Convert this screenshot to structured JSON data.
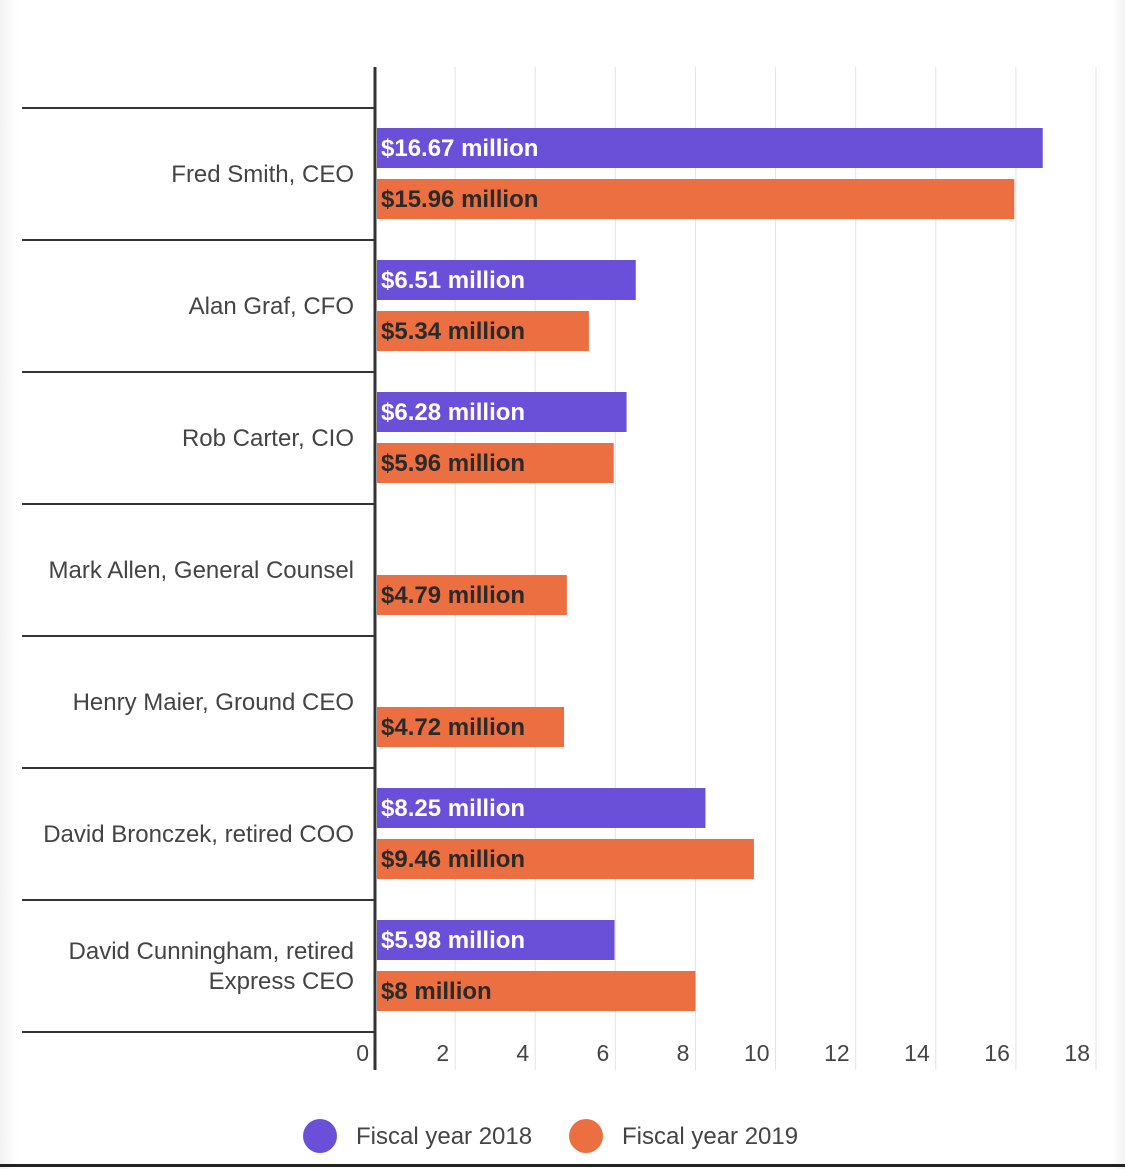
{
  "chart_data": {
    "type": "bar",
    "orientation": "horizontal",
    "categories": [
      [
        "Fred Smith, CEO"
      ],
      [
        "Alan Graf, CFO"
      ],
      [
        "Rob Carter, CIO"
      ],
      [
        "Mark Allen, General Counsel"
      ],
      [
        "Henry Maier, Ground CEO"
      ],
      [
        "David Bronczek, retired COO"
      ],
      [
        "David Cunningham, retired",
        "Express CEO"
      ]
    ],
    "series": [
      {
        "name": "Fiscal year 2018",
        "color": "#6a4fd8",
        "label_color": "#ffffff",
        "values": [
          16.67,
          6.51,
          6.28,
          null,
          null,
          8.25,
          5.98
        ],
        "labels": [
          "$16.67 million",
          "$6.51 million",
          "$6.28 million",
          null,
          null,
          "$8.25 million",
          "$5.98 million"
        ]
      },
      {
        "name": "Fiscal year 2019",
        "color": "#ec6f42",
        "label_color": "#2a2a2a",
        "values": [
          15.96,
          5.34,
          5.96,
          4.79,
          4.72,
          9.46,
          8
        ],
        "labels": [
          "$15.96 million",
          "$5.34 million",
          "$5.96 million",
          "$4.79 million",
          "$4.72 million",
          "$9.46 million",
          "$8 million"
        ]
      }
    ],
    "x_ticks": [
      0,
      2,
      4,
      6,
      8,
      10,
      12,
      14,
      16,
      18
    ],
    "xlim": [
      0,
      18
    ],
    "grid": true,
    "legend": "bottom-center"
  }
}
